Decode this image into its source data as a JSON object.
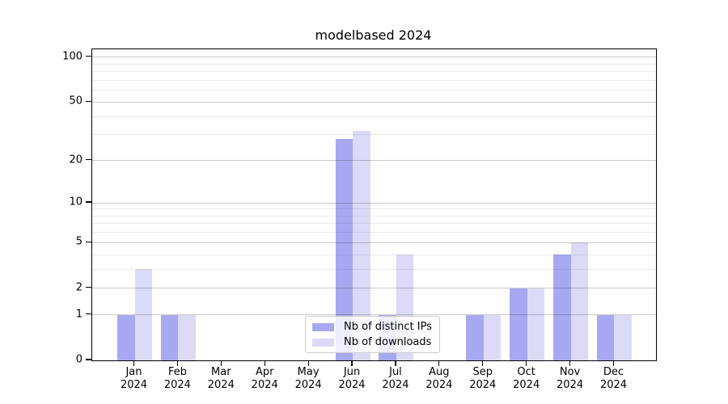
{
  "chart_data": {
    "type": "bar",
    "title": "modelbased 2024",
    "categories": [
      "Jan",
      "Feb",
      "Mar",
      "Apr",
      "May",
      "Jun",
      "Jul",
      "Aug",
      "Sep",
      "Oct",
      "Nov",
      "Dec"
    ],
    "x_tick_second_line": "2024",
    "series": [
      {
        "name": "Nb of distinct IPs",
        "color": "#a8a8f2",
        "values": [
          1,
          1,
          0,
          0,
          0,
          28,
          1,
          0,
          1,
          2,
          4,
          1
        ]
      },
      {
        "name": "Nb of downloads",
        "color": "#dbdbf7",
        "values": [
          3,
          1,
          0,
          0,
          0,
          32,
          4,
          0,
          1,
          2,
          5,
          1
        ]
      }
    ],
    "y_axis": {
      "scale": "log1p",
      "ylim": [
        0,
        113
      ],
      "major_ticks": [
        0,
        1,
        2,
        5,
        10,
        20,
        50,
        100
      ],
      "minor_ticks": [
        3,
        4,
        6,
        7,
        8,
        9,
        30,
        40,
        60,
        70,
        80,
        90
      ]
    },
    "legend": {
      "position": "lower center"
    },
    "grid": "on, drawn above bars",
    "colors": {
      "background": "#ffffff",
      "spine": "#000000",
      "text": "#000000",
      "major_grid": "rgba(0,0,0,0.21)",
      "minor_grid": "rgba(0,0,0,0.08)"
    }
  }
}
